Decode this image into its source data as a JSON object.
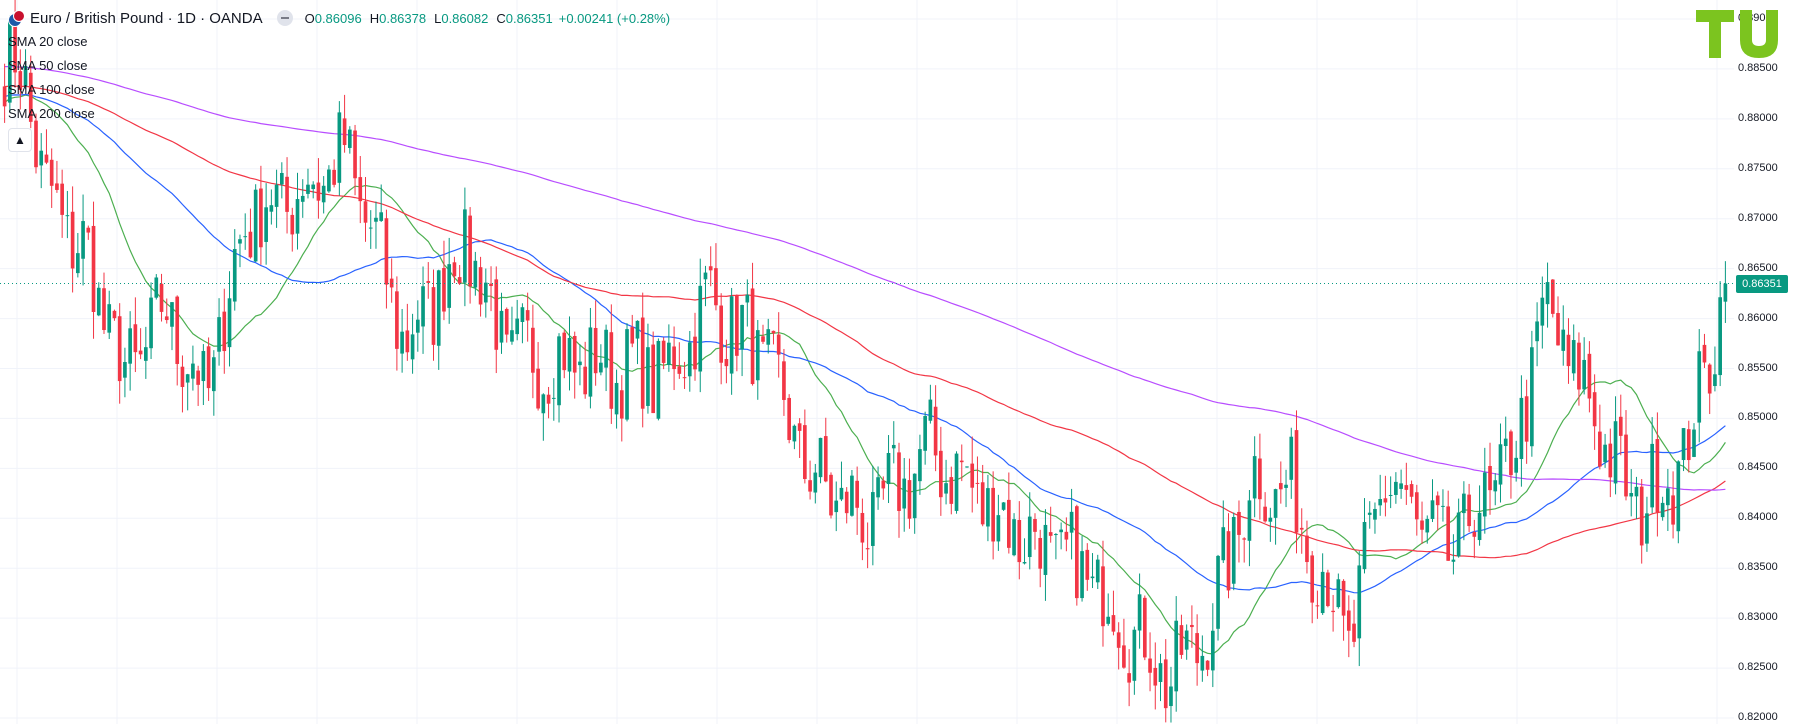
{
  "header": {
    "symbol_title": "Euro / British Pound · 1D · OANDA",
    "ohlc": {
      "o_label": "O",
      "o_value": "0.86096",
      "h_label": "H",
      "h_value": "0.86378",
      "l_label": "L",
      "l_value": "0.86082",
      "c_label": "C",
      "c_value": "0.86351",
      "change": "+0.00241 (+0.28%)"
    },
    "indicators": [
      "SMA 20 close",
      "SMA 50 close",
      "SMA 100 close",
      "SMA 200 close"
    ]
  },
  "colors": {
    "up": "#089981",
    "down": "#f23645",
    "sma20": "#4caf50",
    "sma50": "#2962ff",
    "sma100": "#f23645",
    "sma200": "#b84dff",
    "grid": "#f0f3fa",
    "logo": "#7cc41f"
  },
  "chart_data": {
    "type": "candlestick",
    "y_axis": {
      "min": 0.82,
      "max": 0.89,
      "ticks": [
        "0.89000",
        "0.88500",
        "0.88000",
        "0.87500",
        "0.87000",
        "0.86500",
        "0.86000",
        "0.85500",
        "0.85000",
        "0.84500",
        "0.84000",
        "0.83500",
        "0.83000",
        "0.82500",
        "0.82000"
      ]
    },
    "current_price": "0.86351",
    "candle_count": 330,
    "close_path_anchors": [
      [
        0,
        0.8855
      ],
      [
        5,
        0.8845
      ],
      [
        10,
        0.8725
      ],
      [
        20,
        0.8665
      ],
      [
        30,
        0.854
      ],
      [
        40,
        0.861
      ],
      [
        50,
        0.852
      ],
      [
        60,
        0.87
      ],
      [
        75,
        0.873
      ],
      [
        85,
        0.8765
      ],
      [
        100,
        0.8575
      ],
      [
        115,
        0.868
      ],
      [
        125,
        0.8565
      ],
      [
        145,
        0.8555
      ],
      [
        165,
        0.8545
      ],
      [
        175,
        0.862
      ],
      [
        190,
        0.8555
      ],
      [
        200,
        0.8445
      ],
      [
        215,
        0.8395
      ],
      [
        230,
        0.847
      ],
      [
        250,
        0.8395
      ],
      [
        270,
        0.834
      ],
      [
        290,
        0.824
      ],
      [
        300,
        0.8295
      ],
      [
        310,
        0.844
      ],
      [
        320,
        0.8425
      ],
      [
        335,
        0.8272
      ],
      [
        343,
        0.8445
      ],
      [
        358,
        0.836
      ],
      [
        375,
        0.8455
      ],
      [
        383,
        0.861
      ],
      [
        395,
        0.851
      ],
      [
        405,
        0.841
      ],
      [
        418,
        0.846
      ],
      [
        428,
        0.8635
      ]
    ],
    "sma_series": [
      {
        "name": "SMA 20 close",
        "period": 20
      },
      {
        "name": "SMA 50 close",
        "period": 50
      },
      {
        "name": "SMA 100 close",
        "period": 100
      },
      {
        "name": "SMA 200 close",
        "period": 200
      }
    ],
    "grid": true
  }
}
